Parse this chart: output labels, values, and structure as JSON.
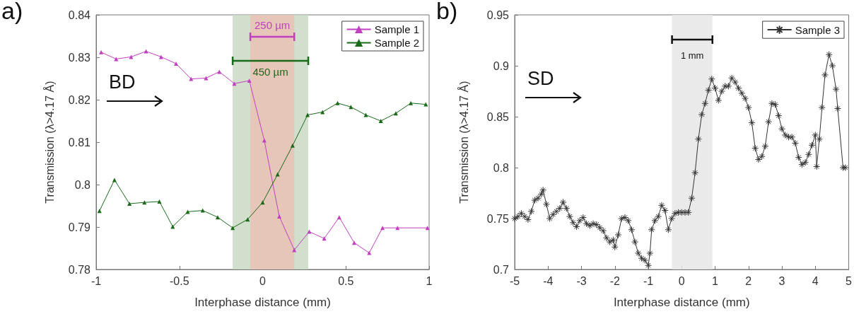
{
  "chart_data": [
    {
      "type": "line",
      "title": "a)",
      "xlabel": "Interphase distance (mm)",
      "ylabel": "Transmission (λ>4.17 Å)",
      "xlim": [
        -1,
        1
      ],
      "xticks": [
        -1,
        -0.5,
        0,
        0.5,
        1
      ],
      "ylim": [
        0.78,
        0.84
      ],
      "yticks": [
        0.78,
        0.79,
        0.8,
        0.81,
        0.82,
        0.83,
        0.84
      ],
      "grid": false,
      "legend": "top right",
      "annotations": [
        "BD"
      ],
      "bands": [
        {
          "axis": "x",
          "from": -0.18,
          "to": 0.274,
          "label": "450 µm",
          "color": "#c9d9c3"
        },
        {
          "axis": "x",
          "from": -0.074,
          "to": 0.19,
          "label": "250 µm",
          "color": "#e9c2b4"
        }
      ],
      "series": [
        {
          "name": "Sample 1",
          "color": "#c040c0",
          "marker": "triangle",
          "x": [
            -0.97,
            -0.88,
            -0.79,
            -0.7,
            -0.61,
            -0.52,
            -0.43,
            -0.34,
            -0.26,
            -0.17,
            -0.08,
            0.01,
            0.1,
            0.19,
            0.28,
            0.37,
            0.46,
            0.55,
            0.64,
            0.72,
            0.81,
            0.99
          ],
          "values": [
            0.8312,
            0.8296,
            0.8301,
            0.8314,
            0.8301,
            0.8285,
            0.8249,
            0.8251,
            0.8266,
            0.8238,
            0.8245,
            0.8104,
            0.7925,
            0.7846,
            0.7889,
            0.7873,
            0.7923,
            0.7863,
            0.7839,
            0.7898,
            0.7898,
            0.7898
          ]
        },
        {
          "name": "Sample 2",
          "color": "#1a6a1a",
          "marker": "triangle",
          "x": [
            -0.98,
            -0.89,
            -0.8,
            -0.71,
            -0.62,
            -0.54,
            -0.45,
            -0.36,
            -0.27,
            -0.18,
            -0.09,
            0,
            0.09,
            0.18,
            0.27,
            0.36,
            0.45,
            0.53,
            0.62,
            0.71,
            0.8,
            0.89,
            0.98
          ],
          "values": [
            0.7938,
            0.8011,
            0.7955,
            0.7958,
            0.796,
            0.7901,
            0.7936,
            0.7939,
            0.7923,
            0.7898,
            0.7918,
            0.7958,
            0.8024,
            0.8092,
            0.8164,
            0.8171,
            0.8192,
            0.8183,
            0.8164,
            0.815,
            0.8168,
            0.8192,
            0.8189
          ]
        }
      ]
    },
    {
      "type": "line",
      "title": "b)",
      "xlabel": "Interphase distance (mm)",
      "ylabel": "Transmission (λ>4.17 Å)",
      "xlim": [
        -5,
        5
      ],
      "xticks": [
        -5,
        -4,
        -3,
        -2,
        -1,
        0,
        1,
        2,
        3,
        4,
        5
      ],
      "ylim": [
        0.7,
        0.95
      ],
      "yticks": [
        0.7,
        0.75,
        0.8,
        0.85,
        0.9,
        0.95
      ],
      "grid": false,
      "legend": "top right",
      "annotations": [
        "SD"
      ],
      "bands": [
        {
          "axis": "x",
          "from": -0.29,
          "to": 0.92,
          "label": "1 mm",
          "color": "#e6e6e6"
        }
      ],
      "series": [
        {
          "name": "Sample 3",
          "color": "#333333",
          "marker": "cross",
          "x": [
            -5,
            -4.9,
            -4.8,
            -4.7,
            -4.6,
            -4.5,
            -4.4,
            -4.3,
            -4.2,
            -4.15,
            -4.05,
            -3.95,
            -3.85,
            -3.75,
            -3.65,
            -3.55,
            -3.45,
            -3.35,
            -3.25,
            -3.15,
            -3.05,
            -2.95,
            -2.85,
            -2.75,
            -2.65,
            -2.55,
            -2.45,
            -2.35,
            -2.25,
            -2.15,
            -2.05,
            -2,
            -1.9,
            -1.8,
            -1.7,
            -1.6,
            -1.5,
            -1.4,
            -1.3,
            -1.2,
            -1.1,
            -1,
            -0.95,
            -0.9,
            -0.8,
            -0.7,
            -0.6,
            -0.5,
            -0.4,
            -0.3,
            -0.2,
            -0.1,
            0,
            0.1,
            0.2,
            0.3,
            0.4,
            0.5,
            0.6,
            0.7,
            0.8,
            0.9,
            1,
            1.1,
            1.2,
            1.3,
            1.4,
            1.5,
            1.6,
            1.7,
            1.8,
            1.9,
            2,
            2.1,
            2.2,
            2.3,
            2.4,
            2.5,
            2.6,
            2.7,
            2.8,
            2.9,
            3,
            3.1,
            3.2,
            3.3,
            3.4,
            3.5,
            3.6,
            3.7,
            3.8,
            3.9,
            4,
            4.04,
            4.12,
            4.2,
            4.29,
            4.41,
            4.51,
            4.62,
            4.67,
            4.83,
            4.9
          ],
          "values": [
            0.75,
            0.752,
            0.755,
            0.752,
            0.749,
            0.757,
            0.768,
            0.77,
            0.774,
            0.778,
            0.764,
            0.75,
            0.754,
            0.757,
            0.76,
            0.766,
            0.76,
            0.752,
            0.746,
            0.742,
            0.748,
            0.751,
            0.745,
            0.743,
            0.745,
            0.744,
            0.741,
            0.738,
            0.731,
            0.727,
            0.729,
            0.722,
            0.734,
            0.75,
            0.751,
            0.748,
            0.739,
            0.727,
            0.716,
            0.711,
            0.709,
            0.704,
            0.716,
            0.739,
            0.748,
            0.752,
            0.763,
            0.758,
            0.739,
            0.75,
            0.755,
            0.756,
            0.756,
            0.756,
            0.756,
            0.77,
            0.795,
            0.828,
            0.852,
            0.863,
            0.876,
            0.887,
            0.878,
            0.866,
            0.875,
            0.88,
            0.88,
            0.888,
            0.884,
            0.878,
            0.873,
            0.868,
            0.859,
            0.844,
            0.819,
            0.808,
            0.811,
            0.821,
            0.845,
            0.863,
            0.862,
            0.851,
            0.838,
            0.832,
            0.83,
            0.83,
            0.824,
            0.81,
            0.803,
            0.805,
            0.813,
            0.822,
            0.832,
            0.801,
            0.828,
            0.859,
            0.891,
            0.911,
            0.9,
            0.877,
            0.858,
            0.8,
            0.8
          ]
        }
      ]
    }
  ]
}
